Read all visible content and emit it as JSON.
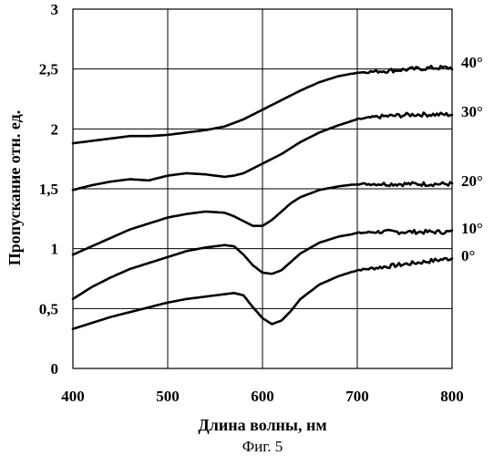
{
  "figure": {
    "caption": "Фиг. 5"
  },
  "chart_data": {
    "type": "line",
    "title": "",
    "xlabel": "Длина волны, нм",
    "ylabel": "Пропускание  отн. ед.",
    "xlim": [
      400,
      800
    ],
    "ylim": [
      0,
      3
    ],
    "xticks": [
      400,
      500,
      600,
      700,
      800
    ],
    "yticks": [
      0,
      0.5,
      1,
      1.5,
      2,
      2.5,
      3
    ],
    "ytick_labels": [
      "0",
      "0,5",
      "1",
      "1,5",
      "2",
      "2,5",
      "3"
    ],
    "grid": "horizontal and vertical",
    "x": [
      400,
      420,
      440,
      460,
      480,
      500,
      520,
      540,
      560,
      570,
      580,
      590,
      600,
      610,
      620,
      630,
      640,
      660,
      680,
      700,
      720,
      740,
      760,
      780,
      800
    ],
    "series": [
      {
        "name": "0°",
        "values": [
          0.33,
          0.38,
          0.43,
          0.47,
          0.51,
          0.55,
          0.58,
          0.6,
          0.62,
          0.63,
          0.61,
          0.51,
          0.42,
          0.37,
          0.4,
          0.48,
          0.58,
          0.7,
          0.77,
          0.82,
          0.84,
          0.86,
          0.88,
          0.9,
          0.92
        ]
      },
      {
        "name": "10°",
        "values": [
          0.58,
          0.68,
          0.76,
          0.83,
          0.88,
          0.93,
          0.98,
          1.01,
          1.03,
          1.02,
          0.95,
          0.86,
          0.8,
          0.79,
          0.82,
          0.89,
          0.96,
          1.05,
          1.1,
          1.13,
          1.14,
          1.14,
          1.14,
          1.14,
          1.14
        ]
      },
      {
        "name": "20°",
        "values": [
          0.95,
          1.02,
          1.09,
          1.16,
          1.21,
          1.26,
          1.29,
          1.31,
          1.3,
          1.27,
          1.23,
          1.19,
          1.19,
          1.24,
          1.31,
          1.38,
          1.43,
          1.49,
          1.52,
          1.54,
          1.54,
          1.54,
          1.54,
          1.54,
          1.54
        ]
      },
      {
        "name": "30°",
        "values": [
          1.49,
          1.53,
          1.56,
          1.58,
          1.57,
          1.61,
          1.63,
          1.62,
          1.6,
          1.61,
          1.63,
          1.67,
          1.71,
          1.75,
          1.79,
          1.84,
          1.89,
          1.97,
          2.03,
          2.08,
          2.1,
          2.11,
          2.12,
          2.12,
          2.12
        ]
      },
      {
        "name": "40°",
        "values": [
          1.88,
          1.9,
          1.92,
          1.94,
          1.94,
          1.95,
          1.97,
          1.99,
          2.02,
          2.05,
          2.08,
          2.12,
          2.16,
          2.2,
          2.24,
          2.28,
          2.32,
          2.39,
          2.44,
          2.47,
          2.48,
          2.49,
          2.5,
          2.51,
          2.51
        ]
      }
    ]
  }
}
